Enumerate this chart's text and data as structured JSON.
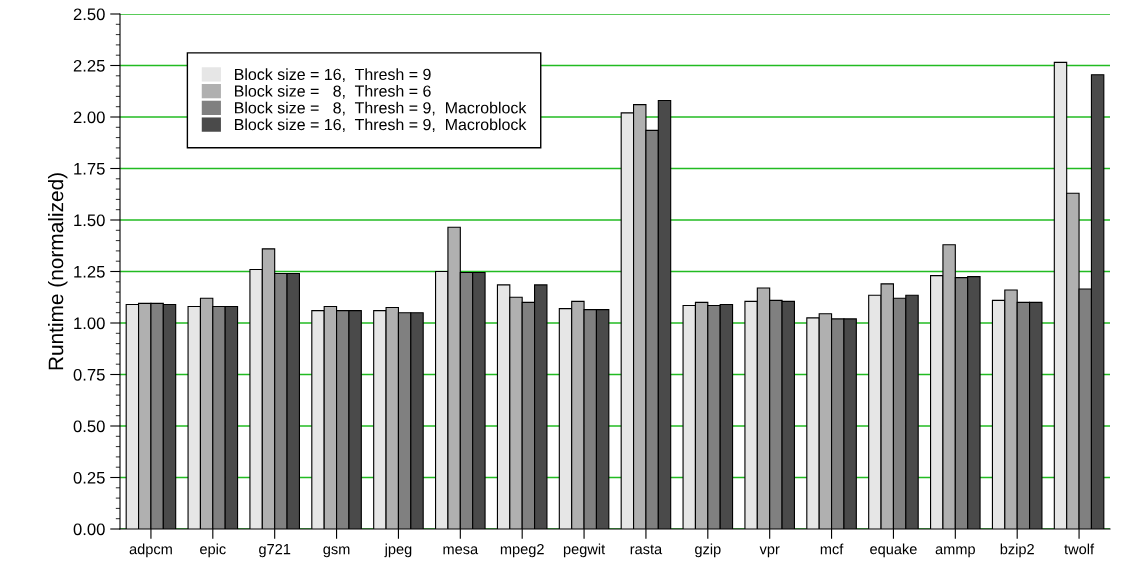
{
  "chart_data": {
    "type": "bar",
    "ylabel": "Runtime (normalized)",
    "categories": [
      "adpcm",
      "epic",
      "g721",
      "gsm",
      "jpeg",
      "mesa",
      "mpeg2",
      "pegwit",
      "rasta",
      "gzip",
      "vpr",
      "mcf",
      "equake",
      "ammp",
      "bzip2",
      "twolf"
    ],
    "series": [
      {
        "name": "Block size = 16,  Thresh = 9",
        "color": "#e6e6e6",
        "values": [
          1.09,
          1.08,
          1.26,
          1.06,
          1.06,
          1.25,
          1.185,
          1.07,
          2.02,
          1.085,
          1.105,
          1.025,
          1.135,
          1.23,
          1.11,
          2.265
        ]
      },
      {
        "name": "Block size =   8,  Thresh = 6",
        "color": "#b0b0b0",
        "values": [
          1.095,
          1.12,
          1.36,
          1.08,
          1.075,
          1.465,
          1.125,
          1.105,
          2.06,
          1.1,
          1.17,
          1.045,
          1.19,
          1.38,
          1.16,
          1.63
        ]
      },
      {
        "name": "Block size =   8,  Thresh = 9,  Macroblock",
        "color": "#808080",
        "values": [
          1.095,
          1.08,
          1.24,
          1.06,
          1.05,
          1.245,
          1.1,
          1.065,
          1.935,
          1.085,
          1.11,
          1.02,
          1.12,
          1.22,
          1.1,
          1.165
        ]
      },
      {
        "name": "Block size = 16,  Thresh = 9,  Macroblock",
        "color": "#4a4a4a",
        "values": [
          1.09,
          1.08,
          1.24,
          1.06,
          1.05,
          1.245,
          1.185,
          1.065,
          2.08,
          1.09,
          1.105,
          1.02,
          1.135,
          1.225,
          1.1,
          2.205
        ]
      }
    ],
    "ylim": [
      0,
      2.5
    ],
    "yticks": [
      {
        "value": 0,
        "label": "0.00"
      },
      {
        "value": 0.25,
        "label": "0.25"
      },
      {
        "value": 0.5,
        "label": "0.50"
      },
      {
        "value": 0.75,
        "label": "0.75"
      },
      {
        "value": 1,
        "label": "1.00"
      },
      {
        "value": 1.25,
        "label": "1.25"
      },
      {
        "value": 1.5,
        "label": "1.50"
      },
      {
        "value": 1.75,
        "label": "1.75"
      },
      {
        "value": 2,
        "label": "2.00"
      },
      {
        "value": 2.25,
        "label": "2.25"
      },
      {
        "value": 2.5,
        "label": "2.50"
      }
    ],
    "grid": "y",
    "legend": "top left"
  }
}
